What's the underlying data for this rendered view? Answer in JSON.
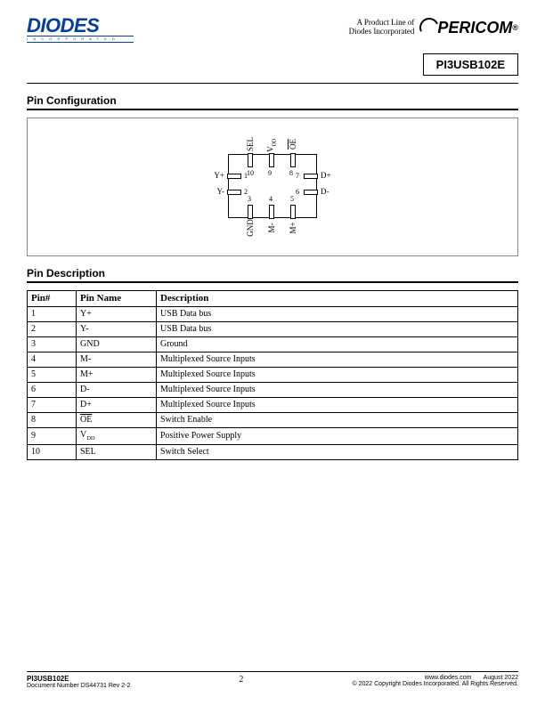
{
  "header": {
    "diodes_logo_text": "DIODES",
    "diodes_sub": "I N C O R P O R A T E D",
    "product_line_l1": "A Product Line of",
    "product_line_l2": "Diodes Incorporated",
    "pericom_text": "PERICOM",
    "pericom_reg": "®",
    "part_number": "PI3USB102E"
  },
  "sections": {
    "pin_config_title": "Pin Configuration",
    "pin_desc_title": "Pin Description"
  },
  "diagram": {
    "body_border_color": "#000000",
    "background": "#ffffff",
    "pins_left": [
      {
        "num": "1",
        "label": "Y+"
      },
      {
        "num": "2",
        "label": "Y-"
      }
    ],
    "pins_right": [
      {
        "num": "7",
        "label": "D+"
      },
      {
        "num": "6",
        "label": "D-"
      }
    ],
    "pins_bottom": [
      {
        "num": "3",
        "label": "GND"
      },
      {
        "num": "4",
        "label": "M-"
      },
      {
        "num": "5",
        "label": "M+"
      }
    ],
    "pins_top": [
      {
        "num": "10",
        "label": "SEL"
      },
      {
        "num": "9",
        "label": "V",
        "sub": "DD"
      },
      {
        "num": "8",
        "label": "OE",
        "overline": true
      }
    ]
  },
  "table": {
    "headers": {
      "num": "Pin#",
      "name": "Pin Name",
      "desc": "Description"
    },
    "rows": [
      {
        "num": "1",
        "name": "Y+",
        "desc": "USB Data bus"
      },
      {
        "num": "2",
        "name": "Y-",
        "desc": "USB Data bus"
      },
      {
        "num": "3",
        "name": "GND",
        "desc": "Ground"
      },
      {
        "num": "4",
        "name": "M-",
        "desc": "Multiplexed Source Inputs"
      },
      {
        "num": "5",
        "name": "M+",
        "desc": "Multiplexed Source Inputs"
      },
      {
        "num": "6",
        "name": "D-",
        "desc": "Multiplexed Source Inputs"
      },
      {
        "num": "7",
        "name": "D+",
        "desc": "Multiplexed Source Inputs"
      },
      {
        "num": "8",
        "name_html": "<span class=\"overline\">OE</span>",
        "desc": "Switch Enable"
      },
      {
        "num": "9",
        "name_html": "V<sub>DD</sub>",
        "desc": "Positive Power Supply"
      },
      {
        "num": "10",
        "name": "SEL",
        "desc": "Switch Select"
      }
    ]
  },
  "footer": {
    "part": "PI3USB102E",
    "doc": "Document Number DS44731 Rev 2-2",
    "page": "2",
    "site": "www.diodes.com",
    "date": "August 2022",
    "copyright": "© 2022 Copyright Diodes Incorporated. All Rights Reserved."
  }
}
